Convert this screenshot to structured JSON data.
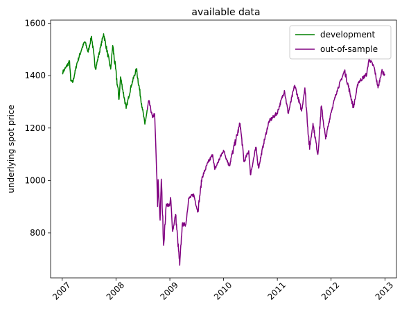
{
  "chart_data": {
    "type": "line",
    "title": "available data",
    "xlabel": "",
    "ylabel": "underlying spot price",
    "xlim": [
      "2006-10-14",
      "2013-03-20"
    ],
    "ylim": [
      628,
      1612
    ],
    "x_ticks": [
      "2007",
      "2008",
      "2009",
      "2010",
      "2011",
      "2012",
      "2013"
    ],
    "y_ticks": [
      800,
      1000,
      1200,
      1400,
      1600
    ],
    "grid": false,
    "legend": "top-right",
    "colors": {
      "development": "#008000",
      "out-of-sample": "#800080"
    },
    "series": [
      {
        "name": "development",
        "points": [
          [
            "2007-01-03",
            1412
          ],
          [
            "2007-01-25",
            1430
          ],
          [
            "2007-02-20",
            1455
          ],
          [
            "2007-02-28",
            1380
          ],
          [
            "2007-03-14",
            1375
          ],
          [
            "2007-04-10",
            1445
          ],
          [
            "2007-05-15",
            1505
          ],
          [
            "2007-06-04",
            1530
          ],
          [
            "2007-06-26",
            1490
          ],
          [
            "2007-07-19",
            1550
          ],
          [
            "2007-08-15",
            1425
          ],
          [
            "2007-09-19",
            1510
          ],
          [
            "2007-10-09",
            1560
          ],
          [
            "2007-11-26",
            1425
          ],
          [
            "2007-12-10",
            1515
          ],
          [
            "2008-01-22",
            1310
          ],
          [
            "2008-02-01",
            1395
          ],
          [
            "2008-03-10",
            1275
          ],
          [
            "2008-04-15",
            1365
          ],
          [
            "2008-05-19",
            1425
          ],
          [
            "2008-06-27",
            1280
          ],
          [
            "2008-07-15",
            1215
          ],
          [
            "2008-08-01",
            1270
          ]
        ]
      },
      {
        "name": "out-of-sample",
        "points": [
          [
            "2008-08-01",
            1270
          ],
          [
            "2008-08-11",
            1305
          ],
          [
            "2008-09-05",
            1240
          ],
          [
            "2008-09-19",
            1255
          ],
          [
            "2008-09-29",
            1105
          ],
          [
            "2008-10-10",
            900
          ],
          [
            "2008-10-13",
            1003
          ],
          [
            "2008-10-27",
            848
          ],
          [
            "2008-11-04",
            1005
          ],
          [
            "2008-11-20",
            752
          ],
          [
            "2008-12-08",
            910
          ],
          [
            "2008-12-31",
            903
          ],
          [
            "2009-01-06",
            935
          ],
          [
            "2009-01-20",
            805
          ],
          [
            "2009-02-09",
            870
          ],
          [
            "2009-03-09",
            676
          ],
          [
            "2009-03-26",
            832
          ],
          [
            "2009-04-20",
            832
          ],
          [
            "2009-05-08",
            930
          ],
          [
            "2009-06-12",
            946
          ],
          [
            "2009-07-10",
            880
          ],
          [
            "2009-08-07",
            1010
          ],
          [
            "2009-09-17",
            1068
          ],
          [
            "2009-10-19",
            1098
          ],
          [
            "2009-11-02",
            1042
          ],
          [
            "2009-12-31",
            1115
          ],
          [
            "2010-02-08",
            1056
          ],
          [
            "2010-04-23",
            1217
          ],
          [
            "2010-05-20",
            1071
          ],
          [
            "2010-06-21",
            1113
          ],
          [
            "2010-07-02",
            1022
          ],
          [
            "2010-08-09",
            1127
          ],
          [
            "2010-08-26",
            1047
          ],
          [
            "2010-09-30",
            1141
          ],
          [
            "2010-11-05",
            1225
          ],
          [
            "2010-12-31",
            1257
          ],
          [
            "2011-02-18",
            1343
          ],
          [
            "2011-03-16",
            1256
          ],
          [
            "2011-04-29",
            1363
          ],
          [
            "2011-06-15",
            1265
          ],
          [
            "2011-07-07",
            1353
          ],
          [
            "2011-08-08",
            1119
          ],
          [
            "2011-08-31",
            1218
          ],
          [
            "2011-10-03",
            1099
          ],
          [
            "2011-10-27",
            1284
          ],
          [
            "2011-11-25",
            1158
          ],
          [
            "2011-12-30",
            1257
          ],
          [
            "2012-02-10",
            1342
          ],
          [
            "2012-04-02",
            1419
          ],
          [
            "2012-06-01",
            1278
          ],
          [
            "2012-07-03",
            1374
          ],
          [
            "2012-08-31",
            1406
          ],
          [
            "2012-09-14",
            1465
          ],
          [
            "2012-10-19",
            1433
          ],
          [
            "2012-11-15",
            1353
          ],
          [
            "2012-12-10",
            1418
          ],
          [
            "2012-12-31",
            1402
          ]
        ]
      }
    ]
  }
}
